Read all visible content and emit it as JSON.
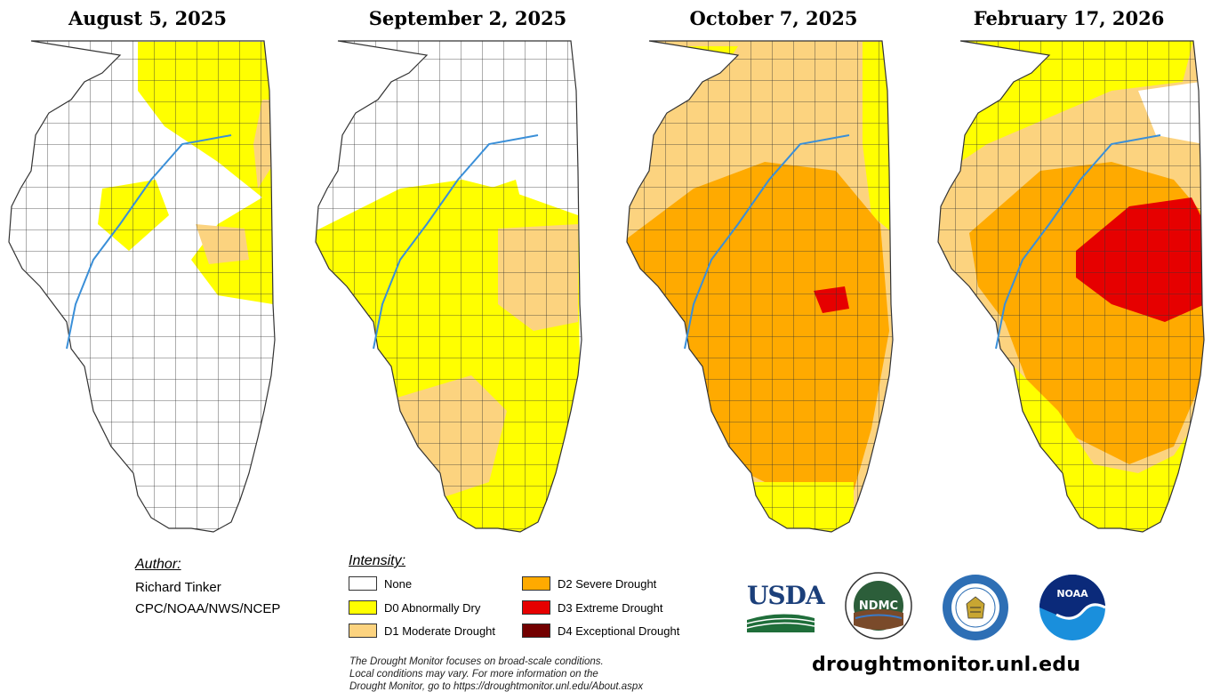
{
  "maps": [
    {
      "title": "August 5, 2025"
    },
    {
      "title": "September 2, 2025"
    },
    {
      "title": "October 7, 2025"
    },
    {
      "title": "February 17, 2026"
    }
  ],
  "author": {
    "label": "Author:",
    "name": "Richard Tinker",
    "org": "CPC/NOAA/NWS/NCEP"
  },
  "legend": {
    "title": "Intensity:",
    "items": [
      {
        "label": "None",
        "color": "#ffffff"
      },
      {
        "label": "D0 Abnormally Dry",
        "color": "#ffff00"
      },
      {
        "label": "D1 Moderate Drought",
        "color": "#fcd37f"
      },
      {
        "label": "D2 Severe Drought",
        "color": "#ffaa00"
      },
      {
        "label": "D3 Extreme Drought",
        "color": "#e60000"
      },
      {
        "label": "D4 Exceptional Drought",
        "color": "#730000"
      }
    ]
  },
  "note": {
    "line1": "The Drought Monitor focuses on broad-scale conditions.",
    "line2": "Local conditions may vary. For more information on the",
    "line3": "Drought Monitor, go to https://droughtmonitor.unl.edu/About.aspx"
  },
  "logos": {
    "usda": "USDA",
    "ndmc": "NDMC",
    "noaa": "NOAA"
  },
  "website": "droughtmonitor.unl.edu"
}
